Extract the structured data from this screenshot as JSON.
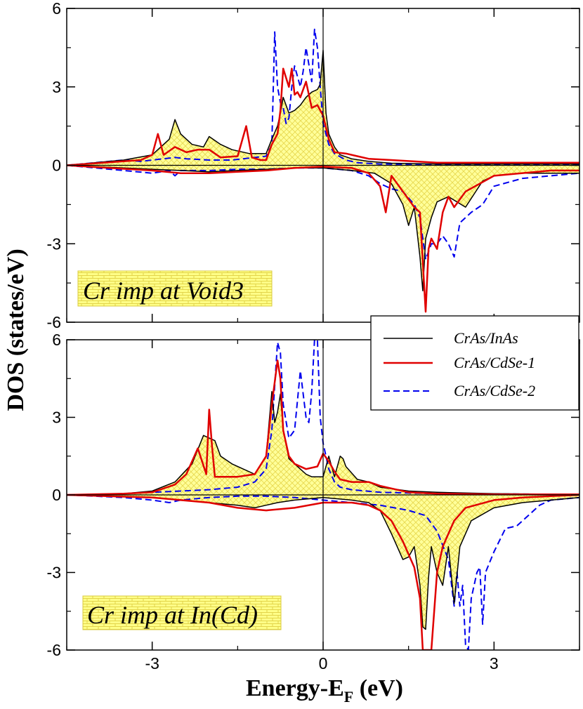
{
  "chart_data": {
    "type": "line",
    "xlabel": "Energy-E",
    "xlabel_sub": "F",
    "xlabel_unit": " (eV)",
    "ylabel": "DOS (states/eV)",
    "xlim": [
      -4.5,
      4.5
    ],
    "xticks": [
      -3,
      0,
      3
    ],
    "xtick_labels": [
      "-3",
      "0",
      "3"
    ],
    "ylim": [
      -6,
      6
    ],
    "yticks": [
      -6,
      -3,
      0,
      3,
      6
    ],
    "ytick_labels": [
      "-6",
      "-3",
      "0",
      "3",
      "6"
    ],
    "colors": {
      "CrAs/InAs": "#000000",
      "CrAs/CdSe-1": "#e00000",
      "CrAs/CdSe-2": "#0000ee",
      "fill": "#ffff88",
      "fill_hatch": "#e8d84a"
    },
    "legend": {
      "placement": "right, between panels",
      "entries": [
        {
          "label": "CrAs/InAs",
          "style": "solid",
          "color": "#000000"
        },
        {
          "label": "CrAs/CdSe-1",
          "style": "solid",
          "color": "#e00000"
        },
        {
          "label": "CrAs/CdSe-2",
          "style": "dashed",
          "color": "#0000ee"
        }
      ]
    },
    "panels": [
      {
        "label": "Cr imp at Void3",
        "series": [
          {
            "name": "CrAs/InAs",
            "spin": "up",
            "x": [
              -4.5,
              -3.5,
              -3.0,
              -2.7,
              -2.6,
              -2.5,
              -2.3,
              -2.1,
              -2.0,
              -1.8,
              -1.6,
              -1.3,
              -1.0,
              -0.9,
              -0.8,
              -0.75,
              -0.7,
              -0.6,
              -0.5,
              -0.4,
              -0.3,
              -0.2,
              -0.1,
              -0.05,
              0.0,
              0.05,
              0.1,
              0.2,
              0.3,
              0.5,
              0.8,
              1.2,
              2.0,
              3.0,
              4.5
            ],
            "y": [
              0.0,
              0.2,
              0.4,
              1.0,
              1.75,
              1.2,
              0.8,
              0.7,
              1.1,
              0.8,
              0.6,
              0.45,
              0.45,
              1.0,
              1.5,
              2.0,
              2.6,
              2.0,
              2.1,
              2.3,
              2.6,
              2.8,
              2.9,
              3.1,
              4.4,
              2.0,
              1.2,
              0.7,
              0.4,
              0.25,
              0.15,
              0.08,
              0.05,
              0.05,
              0.05
            ]
          },
          {
            "name": "CrAs/InAs",
            "spin": "down",
            "x": [
              -4.5,
              -3.0,
              -2.5,
              -2.0,
              -1.5,
              -1.0,
              -0.5,
              0.0,
              0.5,
              0.9,
              1.2,
              1.4,
              1.5,
              1.6,
              1.7,
              1.75,
              1.8,
              1.9,
              2.0,
              2.2,
              2.5,
              2.8,
              3.0,
              3.5,
              4.0,
              4.5
            ],
            "y": [
              0.0,
              -0.15,
              -0.2,
              -0.25,
              -0.2,
              -0.15,
              -0.1,
              -0.1,
              -0.2,
              -0.3,
              -0.7,
              -1.5,
              -2.3,
              -1.6,
              -3.5,
              -4.8,
              -2.8,
              -2.0,
              -1.4,
              -1.2,
              -1.6,
              -0.6,
              -0.4,
              -0.3,
              -0.3,
              -0.3
            ]
          },
          {
            "name": "CrAs/CdSe-1",
            "spin": "up",
            "x": [
              -4.5,
              -3.2,
              -3.0,
              -2.9,
              -2.8,
              -2.6,
              -2.4,
              -2.2,
              -2.0,
              -1.8,
              -1.5,
              -1.35,
              -1.25,
              -1.1,
              -1.0,
              -0.9,
              -0.8,
              -0.75,
              -0.7,
              -0.6,
              -0.55,
              -0.5,
              -0.45,
              -0.4,
              -0.3,
              -0.2,
              -0.1,
              0.0,
              0.1,
              0.2,
              0.4,
              0.6,
              0.8,
              1.2,
              2.0,
              3.0,
              4.5
            ],
            "y": [
              0.0,
              0.2,
              0.4,
              1.2,
              0.4,
              0.7,
              0.5,
              0.6,
              0.6,
              0.3,
              0.35,
              1.5,
              0.3,
              0.2,
              0.2,
              0.8,
              1.2,
              2.1,
              3.7,
              3.0,
              3.7,
              2.7,
              2.8,
              2.6,
              3.2,
              2.2,
              2.3,
              1.9,
              1.0,
              0.5,
              0.45,
              0.35,
              0.25,
              0.2,
              0.1,
              0.1,
              0.1
            ]
          },
          {
            "name": "CrAs/CdSe-1",
            "spin": "down",
            "x": [
              -4.5,
              -3.0,
              -2.5,
              -2.0,
              -1.5,
              -1.0,
              -0.5,
              0.0,
              0.5,
              0.8,
              1.0,
              1.1,
              1.2,
              1.4,
              1.6,
              1.7,
              1.8,
              1.85,
              1.9,
              2.0,
              2.1,
              2.2,
              2.3,
              2.5,
              3.0,
              4.0,
              4.5
            ],
            "y": [
              0.0,
              -0.2,
              -0.3,
              -0.3,
              -0.25,
              -0.2,
              -0.1,
              -0.05,
              -0.1,
              -0.3,
              -0.8,
              -1.8,
              -0.4,
              -1.0,
              -1.6,
              -1.8,
              -5.6,
              -3.2,
              -2.8,
              -3.2,
              -1.8,
              -1.2,
              -1.6,
              -1.0,
              -0.4,
              -0.2,
              -0.2
            ]
          },
          {
            "name": "CrAs/CdSe-2",
            "spin": "up",
            "x": [
              -4.5,
              -3.5,
              -3.2,
              -3.0,
              -2.6,
              -2.4,
              -2.0,
              -1.6,
              -1.2,
              -1.0,
              -0.9,
              -0.85,
              -0.8,
              -0.75,
              -0.7,
              -0.65,
              -0.6,
              -0.55,
              -0.5,
              -0.45,
              -0.4,
              -0.35,
              -0.3,
              -0.2,
              -0.15,
              -0.1,
              -0.05,
              0.0,
              0.1,
              0.2,
              0.4,
              0.6,
              1.0,
              2.0,
              4.5
            ],
            "y": [
              0.0,
              0.2,
              0.15,
              0.2,
              0.3,
              0.25,
              0.2,
              0.2,
              0.3,
              0.35,
              0.8,
              5.1,
              3.0,
              2.4,
              2.2,
              1.6,
              1.8,
              3.0,
              3.8,
              3.4,
              3.0,
              3.6,
              4.5,
              3.2,
              5.2,
              4.5,
              3.0,
              1.6,
              0.8,
              0.45,
              0.2,
              0.1,
              0.05,
              0.03,
              0.03
            ]
          },
          {
            "name": "CrAs/CdSe-2",
            "spin": "down",
            "x": [
              -4.5,
              -4.0,
              -3.5,
              -3.0,
              -2.7,
              -2.6,
              -2.5,
              -2.0,
              -1.5,
              -1.0,
              -0.5,
              0.0,
              0.5,
              0.8,
              1.0,
              1.2,
              1.4,
              1.6,
              1.7,
              1.8,
              1.9,
              2.0,
              2.1,
              2.2,
              2.3,
              2.4,
              2.5,
              2.6,
              2.8,
              3.0,
              3.5,
              4.0,
              4.5
            ],
            "y": [
              0.0,
              -0.1,
              -0.2,
              -0.3,
              -0.2,
              -0.4,
              -0.2,
              -0.2,
              -0.15,
              -0.15,
              -0.1,
              -0.1,
              -0.2,
              -0.4,
              -0.7,
              -0.9,
              -1.0,
              -1.5,
              -2.0,
              -3.6,
              -3.0,
              -3.0,
              -2.7,
              -3.0,
              -3.5,
              -2.2,
              -2.0,
              -1.8,
              -1.5,
              -0.8,
              -0.5,
              -0.4,
              -0.3
            ]
          }
        ]
      },
      {
        "label": "Cr imp at In(Cd)",
        "series": [
          {
            "name": "CrAs/InAs",
            "spin": "up",
            "x": [
              -4.5,
              -3.5,
              -3.0,
              -2.6,
              -2.3,
              -2.1,
              -1.9,
              -1.8,
              -1.6,
              -1.4,
              -1.2,
              -1.0,
              -0.9,
              -0.85,
              -0.8,
              -0.75,
              -0.7,
              -0.6,
              -0.5,
              -0.4,
              -0.3,
              -0.2,
              -0.1,
              0.0,
              0.1,
              0.2,
              0.3,
              0.35,
              0.4,
              0.6,
              0.8,
              1.0,
              1.5,
              2.0,
              3.0,
              4.5
            ],
            "y": [
              0.0,
              0.05,
              0.15,
              0.5,
              1.2,
              2.3,
              2.1,
              1.5,
              1.2,
              1.0,
              0.8,
              1.5,
              4.0,
              2.8,
              3.2,
              3.9,
              2.5,
              1.4,
              1.2,
              1.0,
              0.8,
              0.7,
              0.7,
              0.7,
              1.5,
              0.7,
              1.5,
              1.4,
              1.1,
              0.6,
              0.5,
              0.3,
              0.15,
              0.1,
              0.05,
              0.02
            ]
          },
          {
            "name": "CrAs/InAs",
            "spin": "down",
            "x": [
              -4.5,
              -3.0,
              -2.5,
              -2.0,
              -1.5,
              -1.2,
              -1.0,
              -0.8,
              -0.5,
              0.0,
              0.5,
              0.8,
              1.0,
              1.2,
              1.4,
              1.5,
              1.6,
              1.7,
              1.75,
              1.8,
              1.85,
              1.9,
              2.0,
              2.1,
              2.2,
              2.3,
              2.4,
              2.6,
              3.0,
              3.5,
              4.0,
              4.5
            ],
            "y": [
              0.0,
              -0.1,
              -0.2,
              -0.3,
              -0.4,
              -0.5,
              -0.4,
              -0.3,
              -0.2,
              -0.1,
              -0.2,
              -0.3,
              -0.6,
              -1.5,
              -2.5,
              -2.4,
              -2.0,
              -3.5,
              -5.1,
              -5.2,
              -3.2,
              -2.0,
              -3.0,
              -3.5,
              -2.0,
              -4.2,
              -2.0,
              -1.0,
              -0.5,
              -0.3,
              -0.2,
              -0.1
            ]
          },
          {
            "name": "CrAs/CdSe-1",
            "spin": "up",
            "x": [
              -4.5,
              -3.5,
              -3.0,
              -2.6,
              -2.4,
              -2.2,
              -2.05,
              -2.0,
              -1.95,
              -1.9,
              -1.8,
              -1.5,
              -1.2,
              -1.0,
              -0.9,
              -0.8,
              -0.75,
              -0.7,
              -0.6,
              -0.5,
              -0.3,
              -0.1,
              0.0,
              0.1,
              0.2,
              0.3,
              0.5,
              0.8,
              1.0,
              1.2,
              1.5,
              2.0,
              3.0,
              4.5
            ],
            "y": [
              0.0,
              0.05,
              0.1,
              0.4,
              0.8,
              1.8,
              0.8,
              3.3,
              1.9,
              0.7,
              0.7,
              0.7,
              0.8,
              1.5,
              3.5,
              5.2,
              4.5,
              2.5,
              1.5,
              1.2,
              1.0,
              1.1,
              1.6,
              1.3,
              0.9,
              0.6,
              0.5,
              0.5,
              0.35,
              0.25,
              0.1,
              0.05,
              0.02,
              0.02
            ]
          },
          {
            "name": "CrAs/CdSe-1",
            "spin": "down",
            "x": [
              -4.5,
              -3.0,
              -2.0,
              -1.5,
              -1.0,
              -0.5,
              0.0,
              0.5,
              0.8,
              1.0,
              1.2,
              1.4,
              1.6,
              1.7,
              1.75,
              1.8,
              1.85,
              1.9,
              2.0,
              2.1,
              2.2,
              2.3,
              2.5,
              3.0,
              3.5,
              4.0,
              4.5
            ],
            "y": [
              0.0,
              -0.1,
              -0.3,
              -0.5,
              -0.6,
              -0.5,
              -0.3,
              -0.3,
              -0.4,
              -0.6,
              -1.0,
              -1.8,
              -2.8,
              -4.0,
              -6.0,
              -6.0,
              -6.0,
              -6.0,
              -3.0,
              -2.0,
              -1.5,
              -1.0,
              -0.5,
              -0.2,
              -0.1,
              -0.05,
              0.0
            ]
          },
          {
            "name": "CrAs/CdSe-2",
            "spin": "up",
            "x": [
              -4.5,
              -3.5,
              -3.0,
              -2.5,
              -2.0,
              -1.5,
              -1.2,
              -1.0,
              -0.9,
              -0.8,
              -0.75,
              -0.7,
              -0.6,
              -0.5,
              -0.4,
              -0.3,
              -0.25,
              -0.2,
              -0.15,
              -0.1,
              -0.05,
              0.0,
              0.1,
              0.2,
              0.3,
              0.5,
              1.0,
              2.0,
              4.5
            ],
            "y": [
              0.0,
              0.05,
              0.1,
              0.15,
              0.2,
              0.3,
              0.5,
              1.0,
              2.5,
              5.9,
              5.5,
              3.5,
              2.2,
              2.5,
              4.8,
              3.0,
              2.8,
              4.0,
              6.0,
              6.0,
              3.0,
              2.0,
              1.0,
              0.5,
              0.3,
              0.2,
              0.1,
              0.05,
              0.02
            ]
          },
          {
            "name": "CrAs/CdSe-2",
            "spin": "down",
            "x": [
              -4.5,
              -3.5,
              -3.0,
              -2.7,
              -2.5,
              -2.0,
              -1.5,
              -1.0,
              -0.5,
              0.0,
              0.5,
              1.0,
              1.5,
              1.8,
              2.0,
              2.2,
              2.3,
              2.35,
              2.4,
              2.45,
              2.5,
              2.55,
              2.6,
              2.7,
              2.75,
              2.8,
              2.85,
              3.0,
              3.2,
              3.4,
              3.6,
              3.8,
              4.0,
              4.5
            ],
            "y": [
              0.0,
              -0.1,
              -0.2,
              -0.3,
              -0.2,
              -0.1,
              -0.05,
              -0.05,
              -0.1,
              -0.2,
              -0.3,
              -0.4,
              -0.6,
              -0.8,
              -1.4,
              -2.5,
              -4.3,
              -3.0,
              -4.3,
              -3.5,
              -5.8,
              -6.0,
              -4.0,
              -3.0,
              -2.8,
              -5.0,
              -3.0,
              -2.2,
              -1.3,
              -1.2,
              -0.8,
              -0.4,
              -0.2,
              -0.1
            ]
          }
        ]
      }
    ]
  }
}
